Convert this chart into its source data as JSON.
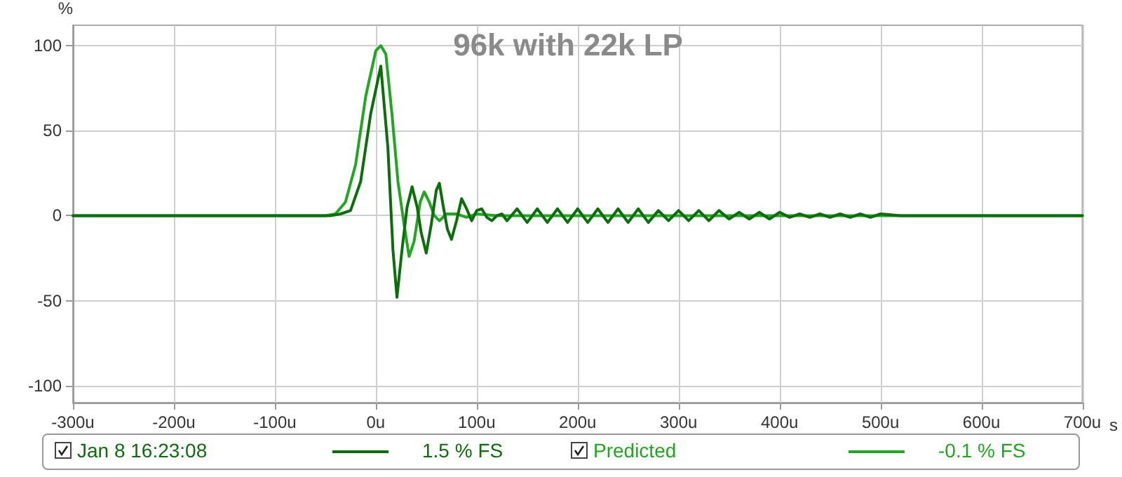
{
  "chart_data": {
    "type": "line",
    "title": "96k with 22k LP",
    "xlabel": "s",
    "ylabel": "%",
    "xlim": [
      -300,
      700
    ],
    "xticks": [
      {
        "value": -300,
        "label": "-300u"
      },
      {
        "value": -200,
        "label": "-200u"
      },
      {
        "value": -100,
        "label": "-100u"
      },
      {
        "value": 0,
        "label": "0u"
      },
      {
        "value": 100,
        "label": "100u"
      },
      {
        "value": 200,
        "label": "200u"
      },
      {
        "value": 300,
        "label": "300u"
      },
      {
        "value": 400,
        "label": "400u"
      },
      {
        "value": 500,
        "label": "500u"
      },
      {
        "value": 600,
        "label": "600u"
      },
      {
        "value": 700,
        "label": "700u"
      }
    ],
    "ylim": [
      -110,
      112
    ],
    "yticks": [
      -100,
      -50,
      0,
      50,
      100
    ],
    "grid": true,
    "legend": "bottom",
    "marker": "none",
    "line_style": "solid",
    "annotations": [
      "1.5 % FS",
      "-0.1 % FS"
    ],
    "series": [
      {
        "name": "Jan 8 16:23:08",
        "color": "#0a6e0a",
        "x": [
          -300,
          -100,
          -45,
          -35,
          -25,
          -15,
          -5,
          5,
          12,
          17,
          21,
          26,
          31,
          36,
          41,
          45,
          50,
          55,
          60,
          63,
          67,
          71,
          75,
          80,
          85,
          90,
          95,
          100,
          105,
          110,
          115,
          120,
          125,
          130,
          140,
          150,
          160,
          170,
          180,
          190,
          200,
          210,
          220,
          230,
          240,
          250,
          260,
          270,
          280,
          290,
          300,
          310,
          320,
          330,
          340,
          350,
          360,
          370,
          380,
          390,
          400,
          410,
          420,
          430,
          440,
          450,
          460,
          470,
          480,
          490,
          500,
          520,
          550,
          700
        ],
        "values": [
          0,
          0,
          0,
          1,
          3,
          20,
          60,
          88,
          40,
          -20,
          -48,
          -20,
          5,
          17,
          5,
          -10,
          -22,
          -5,
          15,
          19,
          5,
          -8,
          -14,
          -3,
          10,
          4,
          -3,
          3,
          4,
          -1,
          -3,
          0,
          1,
          -3,
          4,
          -4,
          4,
          -4,
          4,
          -4,
          4,
          -4,
          4,
          -4,
          4,
          -4,
          4,
          -4,
          3,
          -3,
          3,
          -3,
          3,
          -3,
          3,
          -2,
          2,
          -2,
          2,
          -2,
          2,
          -1,
          1,
          -1,
          1,
          -1,
          1,
          -1,
          1,
          -1,
          1,
          0,
          0,
          0
        ]
      },
      {
        "name": "Predicted",
        "color": "#1fa81f",
        "x": [
          -300,
          -50,
          -40,
          -30,
          -20,
          -10,
          0,
          5,
          10,
          16,
          22,
          28,
          33,
          38,
          44,
          48,
          53,
          58,
          63,
          70,
          80,
          90,
          100,
          120,
          700
        ],
        "values": [
          0,
          0,
          1,
          8,
          30,
          70,
          97,
          100,
          95,
          60,
          20,
          -5,
          -24,
          -15,
          8,
          14,
          8,
          0,
          -3,
          1,
          1,
          -1,
          1,
          0,
          0
        ]
      }
    ]
  }
}
